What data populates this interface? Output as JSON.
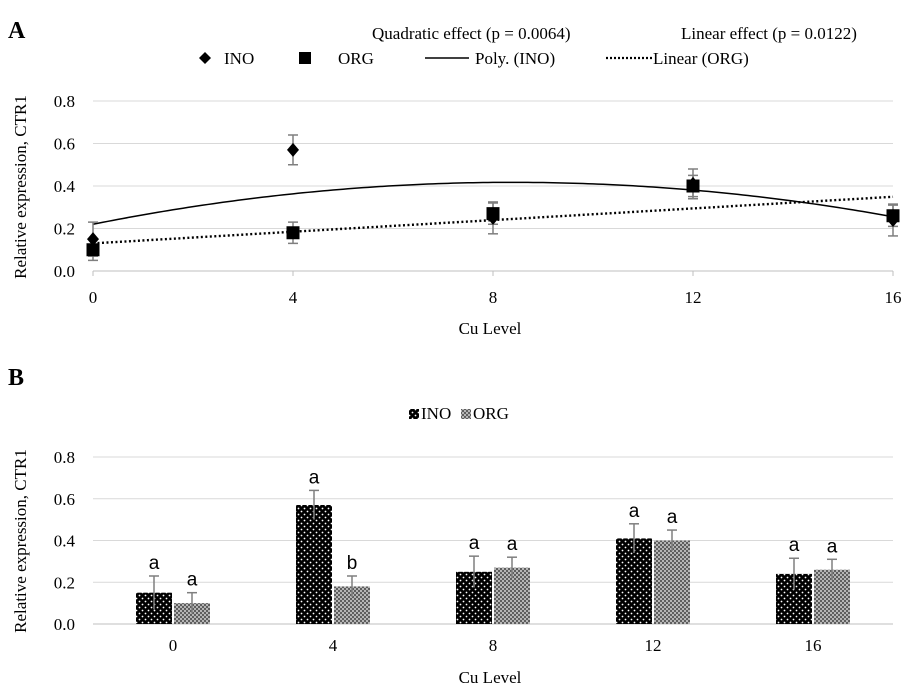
{
  "chart_data": [
    {
      "panel": "A",
      "type": "scatter",
      "annotations": [
        "Quadratic effect (p = 0.0064)",
        "Linear effect (p = 0.0122)"
      ],
      "xlabel": "Cu Level",
      "ylabel": "Relative expression, CTR1",
      "x": [
        0,
        4,
        8,
        12,
        16
      ],
      "xticks": [
        "0",
        "4",
        "8",
        "12",
        "16"
      ],
      "xlim": [
        0,
        16
      ],
      "ylim": [
        0,
        0.8
      ],
      "yticks": [
        "0.0",
        "0.2",
        "0.4",
        "0.6",
        "0.8"
      ],
      "grid": true,
      "legend_position": "top",
      "series": [
        {
          "name": "INO",
          "marker": "diamond",
          "values": [
            0.15,
            0.57,
            0.25,
            0.41,
            0.24
          ],
          "errors": [
            0.08,
            0.07,
            0.075,
            0.07,
            0.075
          ]
        },
        {
          "name": "ORG",
          "marker": "square",
          "values": [
            0.1,
            0.18,
            0.27,
            0.4,
            0.26
          ],
          "errors": [
            0.05,
            0.05,
            0.05,
            0.05,
            0.05
          ]
        }
      ],
      "trendlines": [
        {
          "name": "Poly. (INO)",
          "style": "solid",
          "coefficients": [
            0.22,
            0.047,
            -0.0028
          ]
        },
        {
          "name": "Linear (ORG)",
          "style": "dotted",
          "coefficients": [
            0.13,
            0.0137
          ]
        }
      ]
    },
    {
      "panel": "B",
      "type": "bar",
      "xlabel": "Cu Level",
      "ylabel": "Relative expression, CTR1",
      "categories": [
        "0",
        "4",
        "8",
        "12",
        "16"
      ],
      "ylim": [
        0,
        0.8
      ],
      "yticks": [
        "0.0",
        "0.2",
        "0.4",
        "0.6",
        "0.8"
      ],
      "grid": true,
      "legend_position": "top",
      "series": [
        {
          "name": "INO",
          "values": [
            0.15,
            0.57,
            0.25,
            0.41,
            0.24
          ],
          "errors": [
            0.08,
            0.07,
            0.075,
            0.07,
            0.075
          ],
          "letters": [
            "a",
            "a",
            "a",
            "a",
            "a"
          ]
        },
        {
          "name": "ORG",
          "values": [
            0.1,
            0.18,
            0.27,
            0.4,
            0.26
          ],
          "errors": [
            0.05,
            0.05,
            0.05,
            0.05,
            0.05
          ],
          "letters": [
            "a",
            "b",
            "a",
            "a",
            "a"
          ]
        }
      ]
    }
  ],
  "panels": {
    "a_label": "A",
    "b_label": "B"
  },
  "colors": {
    "ino": "#000000",
    "org": "#7a7a7a",
    "grid": "#d9d9d9",
    "axis": "#bfbfbf",
    "error": "#7f7f7f"
  }
}
